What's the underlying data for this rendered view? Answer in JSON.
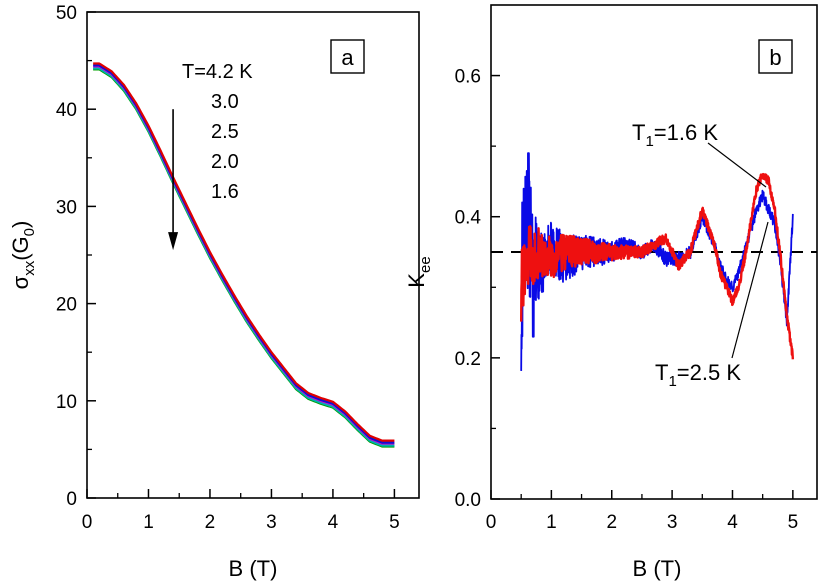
{
  "chart_data": [
    {
      "type": "line",
      "panel": "a",
      "xlabel": "B (T)",
      "ylabel": {
        "main": "σ",
        "sub": "xx",
        "mid": "(G",
        "sub2": "0",
        "end": ")"
      },
      "xlim": [
        0,
        5.4
      ],
      "ylim": [
        0,
        50
      ],
      "xticks": [
        "0",
        "1",
        "2",
        "3",
        "4",
        "5"
      ],
      "yticks": [
        "0",
        "10",
        "20",
        "30",
        "40",
        "50"
      ],
      "legend": [
        "T=4.2 K",
        "3.0",
        "2.5",
        "2.0",
        "1.6"
      ],
      "arrow": {
        "x": 1.4,
        "y_from": 40,
        "y_to": 25.5
      },
      "series": [
        {
          "name": "T=4.2 K",
          "color": "#e00000",
          "offset": 0.35,
          "x": [
            0.1,
            0.2,
            0.4,
            0.6,
            0.8,
            1.0,
            1.2,
            1.4,
            1.6,
            1.8,
            2.0,
            2.2,
            2.4,
            2.6,
            2.8,
            3.0,
            3.2,
            3.4,
            3.6,
            3.8,
            4.0,
            4.2,
            4.4,
            4.6,
            4.8,
            5.0
          ],
          "y": [
            44.7,
            44.7,
            43.9,
            42.5,
            40.6,
            38.3,
            35.7,
            33.0,
            30.4,
            27.8,
            25.3,
            23.0,
            20.8,
            18.7,
            16.8,
            15.0,
            13.4,
            11.8,
            10.8,
            10.3,
            9.9,
            8.9,
            7.6,
            6.4,
            5.9,
            5.9
          ]
        },
        {
          "name": "3.0",
          "color": "#1010d0",
          "offset": 0.15,
          "x": [
            0.1,
            0.2,
            0.4,
            0.6,
            0.8,
            1.0,
            1.2,
            1.4,
            1.6,
            1.8,
            2.0,
            2.2,
            2.4,
            2.6,
            2.8,
            3.0,
            3.2,
            3.4,
            3.6,
            3.8,
            4.0,
            4.2,
            4.4,
            4.6,
            4.8,
            5.0
          ],
          "y": [
            44.5,
            44.5,
            43.7,
            42.3,
            40.4,
            38.1,
            35.5,
            32.8,
            30.2,
            27.6,
            25.1,
            22.8,
            20.6,
            18.5,
            16.6,
            14.8,
            13.2,
            11.6,
            10.6,
            10.1,
            9.7,
            8.7,
            7.4,
            6.2,
            5.7,
            5.7
          ]
        },
        {
          "name": "2.5",
          "color": "#d000d0",
          "offset": 0.0,
          "x": [
            0.1,
            0.2,
            0.4,
            0.6,
            0.8,
            1.0,
            1.2,
            1.4,
            1.6,
            1.8,
            2.0,
            2.2,
            2.4,
            2.6,
            2.8,
            3.0,
            3.2,
            3.4,
            3.6,
            3.8,
            4.0,
            4.2,
            4.4,
            4.6,
            4.8,
            5.0
          ],
          "y": [
            44.4,
            44.4,
            43.6,
            42.2,
            40.3,
            38.0,
            35.4,
            32.7,
            30.1,
            27.5,
            25.0,
            22.7,
            20.5,
            18.4,
            16.5,
            14.7,
            13.1,
            11.5,
            10.5,
            10.0,
            9.6,
            8.6,
            7.3,
            6.1,
            5.6,
            5.6
          ]
        },
        {
          "name": "2.0",
          "color": "#00b0b0",
          "offset": -0.15,
          "x": [
            0.1,
            0.2,
            0.4,
            0.6,
            0.8,
            1.0,
            1.2,
            1.4,
            1.6,
            1.8,
            2.0,
            2.2,
            2.4,
            2.6,
            2.8,
            3.0,
            3.2,
            3.4,
            3.6,
            3.8,
            4.0,
            4.2,
            4.4,
            4.6,
            4.8,
            5.0
          ],
          "y": [
            44.2,
            44.2,
            43.4,
            42.0,
            40.1,
            37.8,
            35.2,
            32.5,
            29.9,
            27.3,
            24.8,
            22.5,
            20.3,
            18.2,
            16.3,
            14.5,
            12.9,
            11.3,
            10.3,
            9.8,
            9.4,
            8.4,
            7.1,
            5.9,
            5.4,
            5.4
          ]
        },
        {
          "name": "1.6",
          "color": "#00a000",
          "offset": -0.3,
          "x": [
            0.1,
            0.2,
            0.4,
            0.6,
            0.8,
            1.0,
            1.2,
            1.4,
            1.6,
            1.8,
            2.0,
            2.2,
            2.4,
            2.6,
            2.8,
            3.0,
            3.2,
            3.4,
            3.6,
            3.8,
            4.0,
            4.2,
            4.4,
            4.6,
            4.8,
            5.0
          ],
          "y": [
            44.1,
            44.1,
            43.3,
            41.9,
            40.0,
            37.7,
            35.1,
            32.4,
            29.8,
            27.2,
            24.7,
            22.4,
            20.2,
            18.1,
            16.2,
            14.4,
            12.8,
            11.2,
            10.2,
            9.7,
            9.3,
            8.3,
            7.0,
            5.8,
            5.3,
            5.3
          ]
        }
      ]
    },
    {
      "type": "line",
      "panel": "b",
      "xlabel": "B (T)",
      "ylabel": {
        "main": "K",
        "sub": "ee"
      },
      "xlim": [
        0,
        5.4
      ],
      "ylim": [
        0,
        0.7
      ],
      "xticks": [
        "0",
        "1",
        "2",
        "3",
        "4",
        "5"
      ],
      "yticks": [
        "0.0",
        "0.2",
        "0.4",
        "0.6"
      ],
      "reference_line": {
        "y": 0.35,
        "style": "dashed"
      },
      "annotations": [
        {
          "text": "T",
          "sub": "1",
          "rest": "=1.6 K"
        },
        {
          "text": "T",
          "sub": "1",
          "rest": "=2.5 K"
        }
      ],
      "series": [
        {
          "name": "T1=2.5 K",
          "color": "#0a0ae6",
          "x": [
            0.5,
            0.6,
            0.8,
            1.0,
            1.2,
            1.5,
            1.8,
            2.0,
            2.2,
            2.5,
            2.7,
            2.9,
            3.1,
            3.3,
            3.5,
            3.7,
            3.8,
            3.9,
            4.0,
            4.1,
            4.2,
            4.3,
            4.4,
            4.5,
            4.6,
            4.7,
            4.8,
            4.9,
            5.0
          ],
          "y": [
            0.3,
            0.38,
            0.33,
            0.36,
            0.34,
            0.35,
            0.35,
            0.35,
            0.36,
            0.35,
            0.36,
            0.34,
            0.34,
            0.35,
            0.4,
            0.36,
            0.33,
            0.31,
            0.3,
            0.32,
            0.35,
            0.38,
            0.41,
            0.43,
            0.41,
            0.39,
            0.33,
            0.25,
            0.4
          ],
          "noise": [
            0.12,
            0.1,
            0.05,
            0.04,
            0.035,
            0.025,
            0.02,
            0.015,
            0.012,
            0.01,
            0.01,
            0.01,
            0.01,
            0.01,
            0.008,
            0.008,
            0.008,
            0.008,
            0.008,
            0.008,
            0.008,
            0.008,
            0.008,
            0.008,
            0.008,
            0.008,
            0.008,
            0.008,
            0.008
          ]
        },
        {
          "name": "T1=1.6 K",
          "color": "#ee1010",
          "x": [
            0.5,
            0.6,
            0.8,
            1.0,
            1.2,
            1.5,
            1.8,
            2.0,
            2.2,
            2.5,
            2.7,
            2.9,
            3.1,
            3.3,
            3.5,
            3.7,
            3.8,
            3.9,
            4.0,
            4.1,
            4.2,
            4.3,
            4.4,
            4.5,
            4.6,
            4.7,
            4.8,
            4.9,
            5.0
          ],
          "y": [
            0.3,
            0.34,
            0.35,
            0.34,
            0.35,
            0.35,
            0.35,
            0.35,
            0.35,
            0.35,
            0.36,
            0.37,
            0.33,
            0.35,
            0.41,
            0.36,
            0.32,
            0.3,
            0.28,
            0.3,
            0.34,
            0.39,
            0.44,
            0.46,
            0.45,
            0.41,
            0.34,
            0.26,
            0.2
          ],
          "noise": [
            0.05,
            0.05,
            0.035,
            0.03,
            0.025,
            0.02,
            0.015,
            0.012,
            0.01,
            0.008,
            0.007,
            0.007,
            0.007,
            0.007,
            0.006,
            0.006,
            0.006,
            0.006,
            0.006,
            0.006,
            0.006,
            0.006,
            0.006,
            0.006,
            0.006,
            0.006,
            0.006,
            0.006,
            0.006
          ]
        }
      ]
    }
  ]
}
